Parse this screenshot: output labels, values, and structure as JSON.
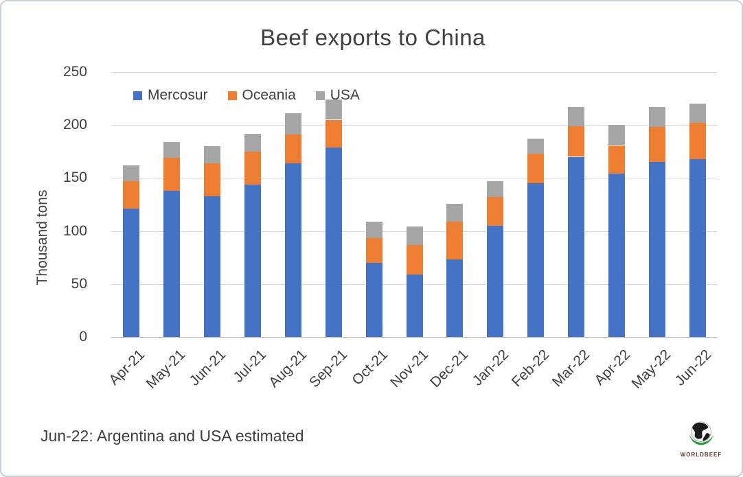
{
  "chart_data": {
    "type": "bar",
    "stacked": true,
    "title": "Beef exports to China",
    "ylabel": "Thousand tons",
    "ylim": [
      0,
      250
    ],
    "ytick_step": 50,
    "grid": true,
    "legend_position": "top-left-inside",
    "categories": [
      "Apr-21",
      "May-21",
      "Jun-21",
      "Jul-21",
      "Aug-21",
      "Sep-21",
      "Oct-21",
      "Nov-21",
      "Dec-21",
      "Jan-22",
      "Feb-22",
      "Mar-22",
      "Apr-22",
      "May-22",
      "Jun-22"
    ],
    "series": [
      {
        "name": "Mercosur",
        "color": "#4472C4",
        "values": [
          121,
          138,
          133,
          144,
          164,
          179,
          70,
          59,
          73,
          105,
          145,
          170,
          154,
          165,
          168
        ]
      },
      {
        "name": "Oceania",
        "color": "#ED7D31",
        "values": [
          26,
          31,
          31,
          31,
          27,
          26,
          23,
          28,
          36,
          27,
          28,
          29,
          27,
          33,
          34
        ]
      },
      {
        "name": "USA",
        "color": "#A5A5A5",
        "values": [
          15,
          15,
          16,
          17,
          20,
          19,
          16,
          17,
          17,
          15,
          14,
          18,
          19,
          19,
          18
        ]
      }
    ]
  },
  "footnote": "Jun-22: Argentina and USA estimated",
  "logo": {
    "text": "WORLDBEEF"
  },
  "style_colors": {
    "gridline": "#d9d9d9",
    "axis_line": "#bfbfbf",
    "text": "#404040",
    "frame_border": "#c7ced4"
  }
}
